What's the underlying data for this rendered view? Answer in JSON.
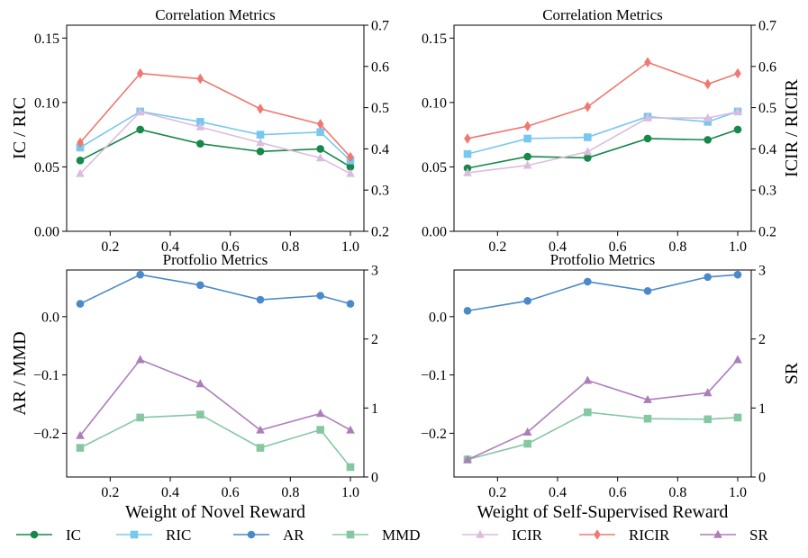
{
  "chart_data": [
    {
      "type": "line",
      "title": "Correlation Metrics",
      "xlabel": "",
      "ylabel_left": "IC / RIC",
      "ylabel_right": "",
      "x": [
        0.1,
        0.3,
        0.5,
        0.7,
        0.9,
        1.0
      ],
      "xticks": [
        0.2,
        0.4,
        0.6,
        0.8,
        1.0
      ],
      "xtick_labels": [
        "0.2",
        "0.4",
        "0.6",
        "0.8",
        "1.0"
      ],
      "ylim_left": [
        0,
        0.16
      ],
      "yticks_left": [
        0,
        0.05,
        0.1,
        0.15
      ],
      "ytick_labels_left": [
        "0.00",
        "0.05",
        "0.10",
        "0.15"
      ],
      "ylim_right": [
        0.2,
        0.7
      ],
      "yticks_right": [
        0.2,
        0.3,
        0.4,
        0.5,
        0.6,
        0.7
      ],
      "ytick_labels_right": [
        "0.2",
        "0.3",
        "0.4",
        "0.5",
        "0.6",
        "0.7"
      ],
      "series": [
        {
          "name": "IC",
          "axis": "left",
          "values": [
            0.055,
            0.079,
            0.068,
            0.062,
            0.064,
            0.05
          ]
        },
        {
          "name": "RIC",
          "axis": "left",
          "values": [
            0.065,
            0.093,
            0.085,
            0.075,
            0.077,
            0.055
          ]
        },
        {
          "name": "ICIR",
          "axis": "right",
          "values": [
            0.34,
            0.49,
            0.453,
            0.415,
            0.378,
            0.34
          ]
        },
        {
          "name": "RICIR",
          "axis": "right",
          "values": [
            0.415,
            0.583,
            0.57,
            0.497,
            0.46,
            0.38
          ]
        }
      ]
    },
    {
      "type": "line",
      "title": "Correlation Metrics",
      "xlabel": "",
      "ylabel_left": "",
      "ylabel_right": "ICIR / RICIR",
      "x": [
        0.1,
        0.3,
        0.5,
        0.7,
        0.9,
        1.0
      ],
      "xticks": [
        0.2,
        0.4,
        0.6,
        0.8,
        1.0
      ],
      "xtick_labels": [
        "0.2",
        "0.4",
        "0.6",
        "0.8",
        "1.0"
      ],
      "ylim_left": [
        0,
        0.16
      ],
      "yticks_left": [
        0,
        0.05,
        0.1,
        0.15
      ],
      "ytick_labels_left": [
        "0.00",
        "0.05",
        "0.10",
        "0.15"
      ],
      "ylim_right": [
        0.2,
        0.7
      ],
      "yticks_right": [
        0.2,
        0.3,
        0.4,
        0.5,
        0.6,
        0.7
      ],
      "ytick_labels_right": [
        "0.2",
        "0.3",
        "0.4",
        "0.5",
        "0.6",
        "0.7"
      ],
      "series": [
        {
          "name": "IC",
          "axis": "left",
          "values": [
            0.049,
            0.058,
            0.057,
            0.072,
            0.071,
            0.079
          ]
        },
        {
          "name": "RIC",
          "axis": "left",
          "values": [
            0.06,
            0.072,
            0.073,
            0.089,
            0.085,
            0.093
          ]
        },
        {
          "name": "ICIR",
          "axis": "right",
          "values": [
            0.342,
            0.36,
            0.393,
            0.475,
            0.475,
            0.49
          ]
        },
        {
          "name": "RICIR",
          "axis": "right",
          "values": [
            0.425,
            0.455,
            0.502,
            0.61,
            0.557,
            0.583
          ]
        }
      ]
    },
    {
      "type": "line",
      "title": "Protfolio Metrics",
      "xlabel": "Weight of Novel Reward",
      "ylabel_left": "AR / MMD",
      "ylabel_right": "",
      "x": [
        0.1,
        0.3,
        0.5,
        0.7,
        0.9,
        1.0
      ],
      "xticks": [
        0.2,
        0.4,
        0.6,
        0.8,
        1.0
      ],
      "xtick_labels": [
        "0.2",
        "0.4",
        "0.6",
        "0.8",
        "1.0"
      ],
      "ylim_left": [
        -0.275,
        0.08
      ],
      "yticks_left": [
        -0.2,
        -0.1,
        0.0
      ],
      "ytick_labels_left": [
        "−0.2",
        "−0.1",
        "0.0"
      ],
      "ylim_right": [
        0,
        3
      ],
      "yticks_right": [
        0,
        1,
        2,
        3
      ],
      "ytick_labels_right": [
        "0",
        "1",
        "2",
        "3"
      ],
      "series": [
        {
          "name": "AR",
          "axis": "left",
          "values": [
            0.022,
            0.072,
            0.054,
            0.029,
            0.036,
            0.022
          ]
        },
        {
          "name": "MMD",
          "axis": "left",
          "values": [
            -0.225,
            -0.173,
            -0.168,
            -0.225,
            -0.194,
            -0.258
          ]
        },
        {
          "name": "SR",
          "axis": "right",
          "values": [
            0.6,
            1.7,
            1.35,
            0.68,
            0.92,
            0.68
          ]
        }
      ]
    },
    {
      "type": "line",
      "title": "Protfolio Metrics",
      "xlabel": "Weight of Self-Supervised Reward",
      "ylabel_left": "",
      "ylabel_right": "SR",
      "x": [
        0.1,
        0.3,
        0.5,
        0.7,
        0.9,
        1.0
      ],
      "xticks": [
        0.2,
        0.4,
        0.6,
        0.8,
        1.0
      ],
      "xtick_labels": [
        "0.2",
        "0.4",
        "0.6",
        "0.8",
        "1.0"
      ],
      "ylim_left": [
        -0.275,
        0.08
      ],
      "yticks_left": [
        -0.2,
        -0.1,
        0.0
      ],
      "ytick_labels_left": [
        "−0.2",
        "−0.1",
        "0.0"
      ],
      "ylim_right": [
        0,
        3
      ],
      "yticks_right": [
        0,
        1,
        2,
        3
      ],
      "ytick_labels_right": [
        "0",
        "1",
        "2",
        "3"
      ],
      "series": [
        {
          "name": "AR",
          "axis": "left",
          "values": [
            0.01,
            0.027,
            0.06,
            0.044,
            0.068,
            0.072
          ]
        },
        {
          "name": "MMD",
          "axis": "left",
          "values": [
            -0.245,
            -0.218,
            -0.164,
            -0.175,
            -0.176,
            -0.173
          ]
        },
        {
          "name": "SR",
          "axis": "right",
          "values": [
            0.25,
            0.65,
            1.4,
            1.12,
            1.22,
            1.7
          ]
        }
      ]
    }
  ],
  "series_styles": {
    "IC": {
      "color": "#15884a",
      "marker": "circle"
    },
    "RIC": {
      "color": "#77c8ef",
      "marker": "square"
    },
    "AR": {
      "color": "#4a8ac9",
      "marker": "circle"
    },
    "MMD": {
      "color": "#84c8a2",
      "marker": "square"
    },
    "ICIR": {
      "color": "#dcbcde",
      "marker": "triangle"
    },
    "RICIR": {
      "color": "#f07870",
      "marker": "diamond"
    },
    "SR": {
      "color": "#ad7dba",
      "marker": "triangle"
    }
  },
  "legend": [
    "IC",
    "RIC",
    "AR",
    "MMD",
    "ICIR",
    "RICIR",
    "SR"
  ]
}
